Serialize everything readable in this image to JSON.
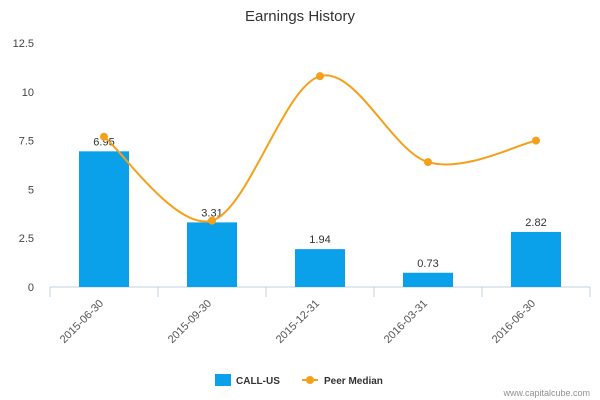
{
  "chart_data": {
    "type": "bar",
    "title": "Earnings History",
    "xlabel": "",
    "ylabel": "",
    "categories": [
      "2015-06-30",
      "2015-09-30",
      "2015-12-31",
      "2016-03-31",
      "2016-06-30"
    ],
    "ylim": [
      0,
      12.5
    ],
    "yticks": [
      "0",
      "2.5",
      "5",
      "7.5",
      "10",
      "12.5"
    ],
    "series": [
      {
        "name": "CALL-US",
        "type": "bar",
        "color": "#0aa0ea",
        "values": [
          6.95,
          3.31,
          1.94,
          0.73,
          2.82
        ],
        "labels": [
          "6.95",
          "3.31",
          "1.94",
          "0.73",
          "2.82"
        ]
      },
      {
        "name": "Peer Median",
        "type": "line",
        "color": "#f5a01a",
        "values": [
          7.7,
          3.4,
          10.8,
          6.4,
          7.5
        ]
      }
    ],
    "legend_position": "bottom-center",
    "grid": false
  },
  "footer": {
    "credit": "www.capitalcube.com"
  }
}
